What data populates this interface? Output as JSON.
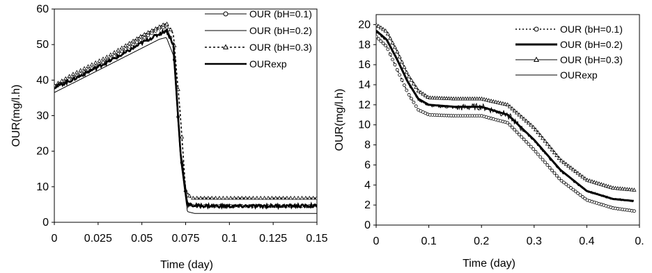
{
  "chart_data": [
    {
      "type": "line",
      "xlabel": "Time (day)",
      "ylabel": "OUR(mg/l.h)",
      "xlim": [
        0,
        0.15
      ],
      "ylim": [
        0,
        60
      ],
      "xticks": [
        "0",
        "0.025",
        "0.05",
        "0.075",
        "0.1",
        "0.125",
        "0.15"
      ],
      "yticks": [
        "0",
        "10",
        "20",
        "30",
        "40",
        "50",
        "60"
      ],
      "grid": false,
      "legend_position": "top-right",
      "series": [
        {
          "name": "OUR (bH=0.1)",
          "style": "thin line, circle markers",
          "x": [
            0,
            0.01,
            0.02,
            0.03,
            0.04,
            0.05,
            0.06,
            0.064,
            0.068,
            0.072,
            0.076,
            0.08,
            0.1,
            0.125,
            0.15
          ],
          "y": [
            38,
            40.5,
            43,
            45.5,
            48.5,
            51.5,
            54.5,
            55,
            50,
            20,
            5,
            4.6,
            4.6,
            4.6,
            4.6
          ]
        },
        {
          "name": "OUR (bH=0.2)",
          "style": "thin line",
          "x": [
            0,
            0.01,
            0.02,
            0.03,
            0.04,
            0.05,
            0.06,
            0.064,
            0.068,
            0.072,
            0.076,
            0.08,
            0.1,
            0.125,
            0.15
          ],
          "y": [
            36.5,
            39,
            41.5,
            44,
            46.5,
            49,
            51.5,
            52,
            47,
            18,
            3,
            2.5,
            2.5,
            2.5,
            2.5
          ]
        },
        {
          "name": "OUR (bH=0.3)",
          "style": "dotted line, triangle markers",
          "x": [
            0,
            0.01,
            0.02,
            0.03,
            0.04,
            0.05,
            0.06,
            0.064,
            0.068,
            0.072,
            0.075,
            0.078,
            0.1,
            0.125,
            0.15
          ],
          "y": [
            38.5,
            41.5,
            44,
            46.5,
            49.5,
            52.5,
            55,
            56,
            53,
            30,
            9,
            6.8,
            6.8,
            6.8,
            6.8
          ]
        },
        {
          "name": "OURexp",
          "style": "thick noisy line",
          "x": [
            0,
            0.01,
            0.02,
            0.03,
            0.04,
            0.05,
            0.06,
            0.064,
            0.068,
            0.072,
            0.076,
            0.08,
            0.1,
            0.125,
            0.15
          ],
          "y": [
            38,
            40,
            42.5,
            45,
            47.5,
            50.5,
            53,
            54,
            50,
            20,
            5,
            4.7,
            4.5,
            4.6,
            4.6
          ]
        }
      ]
    },
    {
      "type": "line",
      "xlabel": "Time (day)",
      "ylabel": "OUR(mg/l.h)",
      "xlim": [
        0,
        0.5
      ],
      "ylim": [
        0,
        21
      ],
      "xticks": [
        "0",
        "0.1",
        "0.2",
        "0.3",
        "0.4",
        "0."
      ],
      "yticks": [
        "0",
        "2",
        "4",
        "6",
        "8",
        "10",
        "12",
        "14",
        "16",
        "18",
        "20"
      ],
      "grid": false,
      "legend_position": "top-right",
      "series": [
        {
          "name": "OUR (bH=0.1)",
          "style": "dotted line, circle markers",
          "x": [
            0,
            0.02,
            0.04,
            0.06,
            0.08,
            0.1,
            0.15,
            0.2,
            0.25,
            0.3,
            0.35,
            0.4,
            0.45,
            0.49
          ],
          "y": [
            18.8,
            17.8,
            15.5,
            13.2,
            11.5,
            11,
            10.9,
            10.9,
            10.2,
            7.5,
            4.5,
            2.5,
            1.7,
            1.4
          ]
        },
        {
          "name": "OUR (bH=0.2)",
          "style": "thick line",
          "x": [
            0,
            0.02,
            0.04,
            0.06,
            0.08,
            0.1,
            0.15,
            0.2,
            0.25,
            0.3,
            0.35,
            0.4,
            0.45,
            0.49
          ],
          "y": [
            19.4,
            18.5,
            16.5,
            14.3,
            12.6,
            12,
            11.8,
            11.8,
            11,
            8.5,
            5.5,
            3.4,
            2.6,
            2.4
          ]
        },
        {
          "name": "OUR (bH=0.3)",
          "style": "thin line, triangle markers",
          "x": [
            0,
            0.02,
            0.04,
            0.06,
            0.08,
            0.1,
            0.15,
            0.2,
            0.25,
            0.3,
            0.35,
            0.4,
            0.45,
            0.49
          ],
          "y": [
            20,
            19.3,
            17.3,
            15,
            13.4,
            12.7,
            12.6,
            12.6,
            12,
            9.7,
            6.5,
            4.5,
            3.7,
            3.5
          ]
        },
        {
          "name": "OURexp",
          "style": "thin noisy line",
          "x": [
            0,
            0.02,
            0.04,
            0.06,
            0.08,
            0.1,
            0.15,
            0.2,
            0.25,
            0.3,
            0.35,
            0.4,
            0.45,
            0.49
          ],
          "y": [
            19.3,
            18.4,
            16.5,
            14.2,
            12.5,
            11.9,
            11.7,
            11.8,
            11,
            8.4,
            5.4,
            3.4,
            2.6,
            2.4
          ]
        }
      ]
    }
  ]
}
